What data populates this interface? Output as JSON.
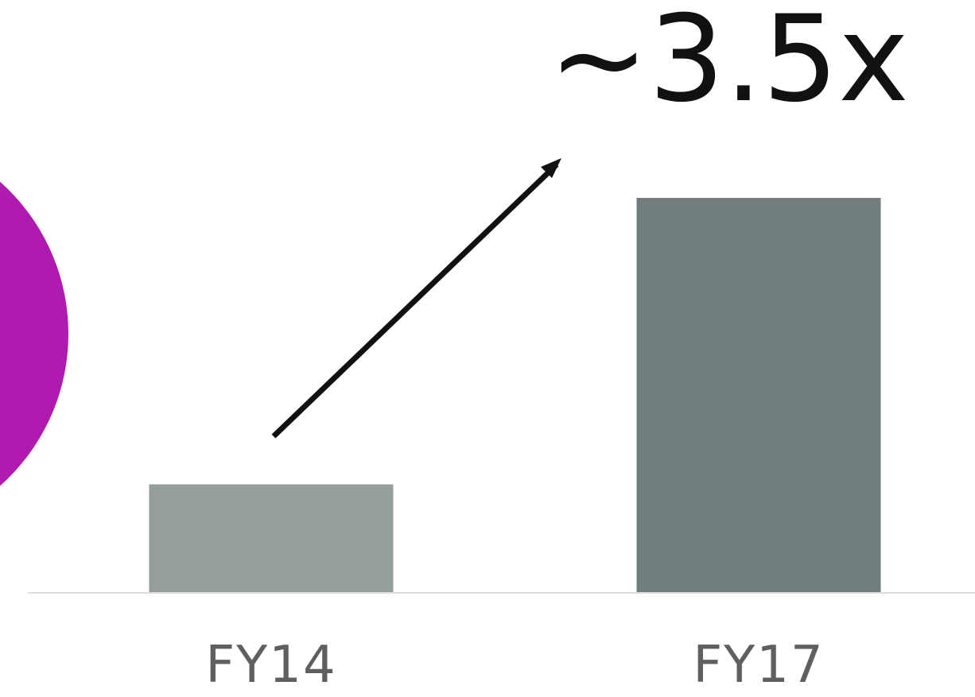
{
  "chart_data": {
    "type": "bar",
    "categories": [
      "FY14",
      "FY17"
    ],
    "values": [
      1,
      3.66
    ],
    "ylim": [
      0,
      3.66
    ],
    "grid": false,
    "annotation": "~3.5x",
    "colors": {
      "bars": [
        "#949e9d",
        "#727e7e"
      ],
      "arrow": "#111111",
      "accent_circle": "#b01baf",
      "baseline": "#dddddd"
    }
  }
}
